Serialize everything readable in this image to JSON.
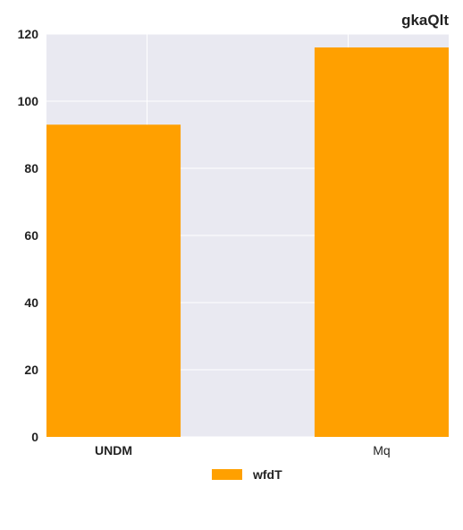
{
  "chart_data": {
    "type": "bar",
    "title": "gkaQlt",
    "xlabel": "",
    "ylabel": "",
    "categories": [
      "UNDM",
      "Mq"
    ],
    "series": [
      {
        "name": "wfdT",
        "values": [
          93,
          116
        ],
        "color": "#ffa000"
      }
    ],
    "ylim": [
      0,
      120
    ],
    "yticks": [
      "0",
      "20",
      "40",
      "60",
      "80",
      "100",
      "120"
    ],
    "grid": true,
    "legend": "bottom-center",
    "background": "#e9e9f1"
  }
}
